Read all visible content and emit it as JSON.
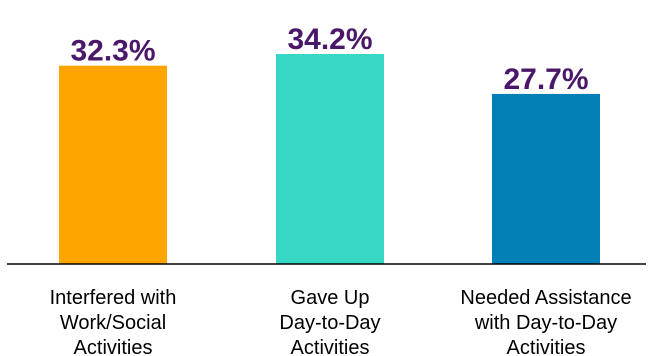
{
  "chart_data": {
    "type": "bar",
    "categories": [
      [
        "Interfered with",
        "Work/Social",
        "Activities"
      ],
      [
        "Gave Up",
        "Day-to-Day",
        "Activities"
      ],
      [
        "Needed Assistance",
        "with Day-to-Day",
        "Activities"
      ]
    ],
    "values": [
      32.3,
      34.2,
      27.7
    ],
    "data_labels": [
      "32.3%",
      "34.2%",
      "27.7%"
    ],
    "colors": [
      "#ffa500",
      "#36d7c4",
      "#0080b4"
    ],
    "label_color": "#4b1869",
    "title": "",
    "xlabel": "",
    "ylabel": "",
    "ylim": [
      0,
      40
    ],
    "grid": false,
    "legend": "none"
  }
}
